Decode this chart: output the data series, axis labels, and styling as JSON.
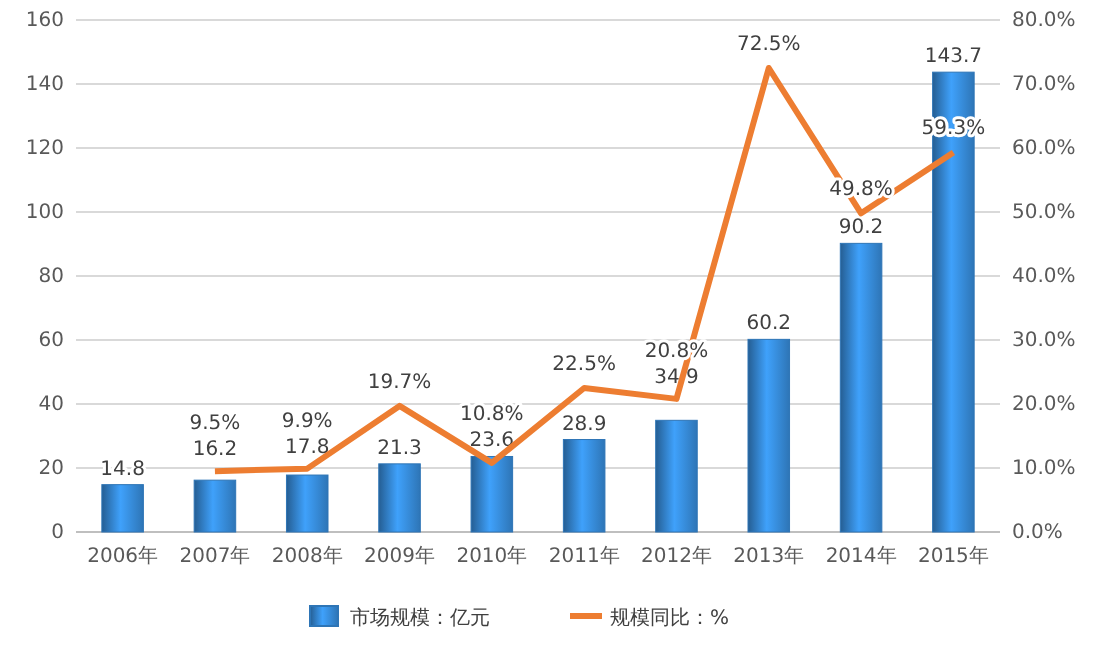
{
  "chart_data": {
    "type": "bar",
    "categories": [
      "2006年",
      "2007年",
      "2008年",
      "2009年",
      "2010年",
      "2011年",
      "2012年",
      "2013年",
      "2014年",
      "2015年"
    ],
    "series": [
      {
        "name": "市场规模：亿元",
        "color": "#2e75b6",
        "values": [
          14.8,
          16.2,
          17.8,
          21.3,
          23.6,
          28.9,
          34.9,
          60.2,
          90.2,
          143.7
        ],
        "value_labels": [
          "14.8",
          "16.2",
          "17.8",
          "21.3",
          "23.6",
          "28.9",
          "34.9",
          "60.2",
          "90.2",
          "143.7"
        ]
      },
      {
        "name": "规模同比：%",
        "type": "line",
        "axis": "y2",
        "color": "#ed7d31",
        "values": [
          null,
          9.5,
          9.9,
          19.7,
          10.8,
          22.5,
          20.8,
          72.5,
          49.8,
          59.3
        ],
        "value_labels": [
          null,
          "9.5%",
          "9.9%",
          "19.7%",
          "10.8%",
          "22.5%",
          "20.8%",
          "72.5%",
          "49.8%",
          "59.3%"
        ]
      }
    ],
    "ylim": [
      0,
      160
    ],
    "yticks": [
      0,
      20,
      40,
      60,
      80,
      100,
      120,
      140,
      160
    ],
    "y2lim": [
      0,
      80
    ],
    "y2ticks": [
      {
        "value": 0,
        "label": "0.0%"
      },
      {
        "value": 10,
        "label": "10.0%"
      },
      {
        "value": 20,
        "label": "20.0%"
      },
      {
        "value": 30,
        "label": "30.0%"
      },
      {
        "value": 40,
        "label": "40.0%"
      },
      {
        "value": 50,
        "label": "50.0%"
      },
      {
        "value": 60,
        "label": "60.0%"
      },
      {
        "value": 70,
        "label": "70.0%"
      },
      {
        "value": 80,
        "label": "80.0%"
      }
    ],
    "grid": "y",
    "legend": "bottom",
    "marker": "none",
    "line_style": "solid"
  }
}
